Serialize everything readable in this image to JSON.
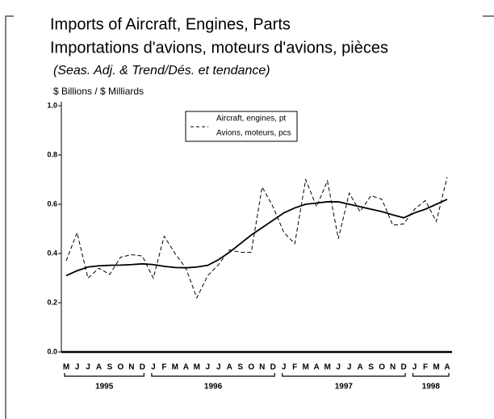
{
  "chart_data": {
    "type": "line",
    "title": "Imports of Aircraft, Engines, Parts",
    "title_fr": "Importations d'avions, moteurs d'avions, pièces",
    "subtitle": "(Seas. Adj. & Trend/Dés. et tendance)",
    "y_label": "$ Billions / $ Milliards",
    "categories": [
      "M",
      "J",
      "J",
      "A",
      "S",
      "O",
      "N",
      "D",
      "J",
      "F",
      "M",
      "A",
      "M",
      "J",
      "J",
      "A",
      "S",
      "O",
      "N",
      "D",
      "J",
      "F",
      "M",
      "A",
      "M",
      "J",
      "J",
      "A",
      "S",
      "O",
      "N",
      "D",
      "J",
      "F",
      "M",
      "A"
    ],
    "years": [
      "1995",
      "1996",
      "1997",
      "1998"
    ],
    "series": [
      {
        "name": "Aircraft, engines, pt",
        "name_fr": "Avions, moteurs, pcs",
        "color": "#000000",
        "dash": true,
        "values": [
          0.37,
          0.485,
          0.3,
          0.34,
          0.315,
          0.385,
          0.395,
          0.39,
          0.3,
          0.47,
          0.4,
          0.34,
          0.22,
          0.31,
          0.355,
          0.415,
          0.405,
          0.405,
          0.67,
          0.59,
          0.485,
          0.44,
          0.7,
          0.59,
          0.695,
          0.46,
          0.645,
          0.57,
          0.635,
          0.62,
          0.515,
          0.52,
          0.58,
          0.615,
          0.53,
          0.71
        ]
      },
      {
        "color": "#000000",
        "dash": false,
        "values": [
          0.31,
          0.33,
          0.345,
          0.35,
          0.352,
          0.353,
          0.355,
          0.358,
          0.355,
          0.348,
          0.343,
          0.342,
          0.345,
          0.352,
          0.375,
          0.405,
          0.44,
          0.475,
          0.505,
          0.535,
          0.565,
          0.585,
          0.6,
          0.605,
          0.61,
          0.61,
          0.6,
          0.59,
          0.58,
          0.57,
          0.557,
          0.545,
          0.565,
          0.58,
          0.6,
          0.62
        ]
      }
    ],
    "ylim": [
      0,
      1
    ],
    "yticks": [
      {
        "value": 0,
        "label": "0.0"
      },
      0.2,
      0.4,
      0.6,
      0.8,
      {
        "value": 1,
        "label": "1.0"
      }
    ],
    "legend": "top-center"
  }
}
